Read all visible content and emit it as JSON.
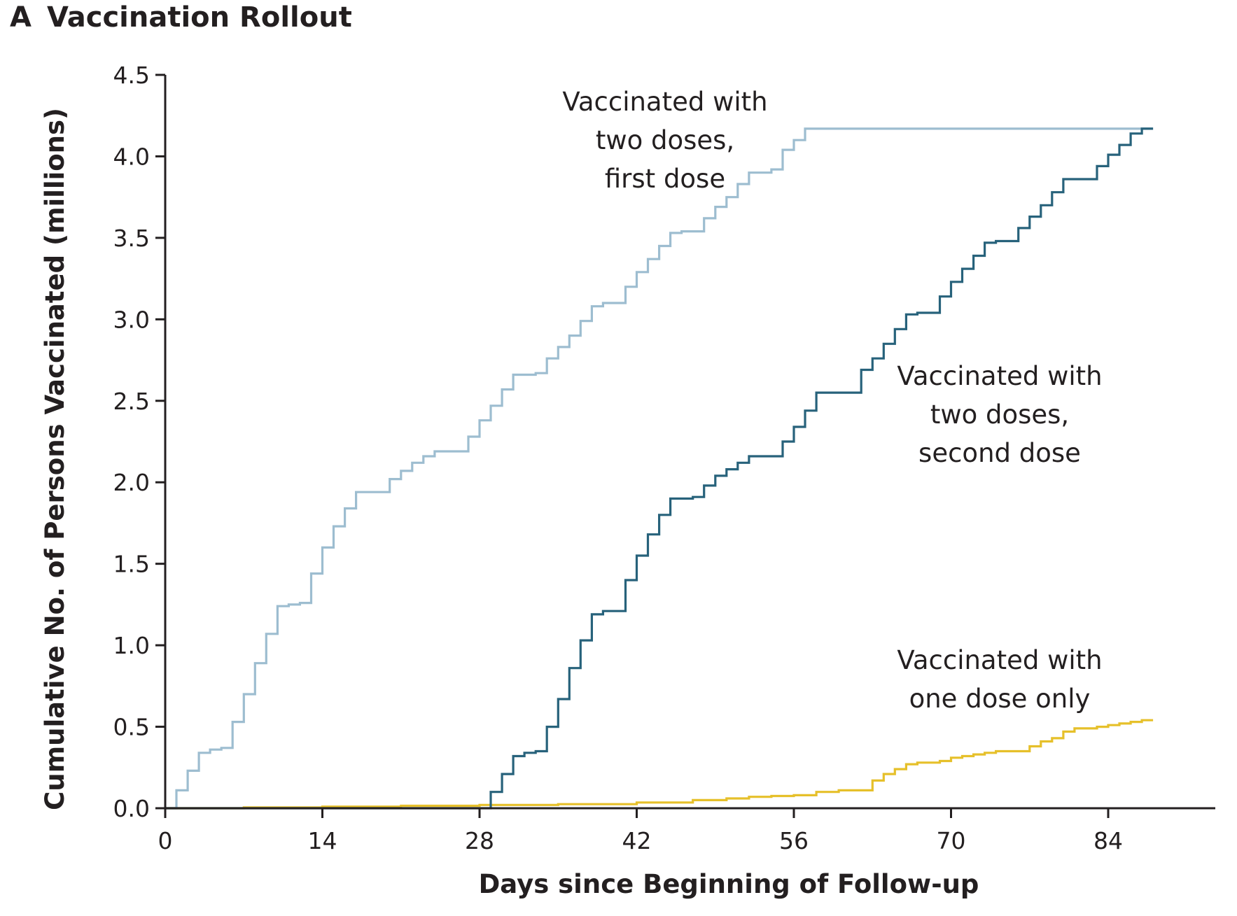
{
  "figure": {
    "panel_letter": "A",
    "panel_title": "Vaccination Rollout"
  },
  "chart_data": {
    "type": "line",
    "title": "Vaccination Rollout",
    "xlabel": "Days since Beginning of Follow-up",
    "ylabel": "Cumulative No. of Persons Vaccinated (millions)",
    "xlim": [
      0,
      93
    ],
    "ylim": [
      0,
      4.5
    ],
    "xticks": [
      0,
      14,
      28,
      42,
      56,
      70,
      84
    ],
    "xtick_labels": [
      "0",
      "14",
      "28",
      "42",
      "56",
      "70",
      "84"
    ],
    "yticks": [
      0,
      0.5,
      1.0,
      1.5,
      2.0,
      2.5,
      3.0,
      3.5,
      4.0,
      4.5
    ],
    "ytick_labels": [
      "0.0",
      "0.5",
      "1.0",
      "1.5",
      "2.0",
      "2.5",
      "3.0",
      "3.5",
      "4.0",
      "4.5"
    ],
    "grid": false,
    "legend": "none (series labeled directly)",
    "series": [
      {
        "key": "first_dose",
        "name": "Vaccinated with two doses, first dose",
        "label_lines": [
          "Vaccinated with",
          "two doses,",
          "first dose"
        ],
        "color": "#9dbdd0",
        "step": true,
        "x": [
          0,
          1,
          2,
          3,
          4,
          5,
          6,
          7,
          8,
          9,
          10,
          11,
          12,
          13,
          14,
          15,
          16,
          17,
          18,
          19,
          20,
          21,
          22,
          23,
          24,
          25,
          26,
          27,
          28,
          29,
          30,
          31,
          32,
          33,
          34,
          35,
          36,
          37,
          38,
          39,
          40,
          41,
          42,
          43,
          44,
          45,
          46,
          47,
          48,
          49,
          50,
          51,
          52,
          53,
          54,
          55,
          56,
          57,
          58,
          59,
          88
        ],
        "values": [
          0,
          0.11,
          0.23,
          0.34,
          0.36,
          0.37,
          0.53,
          0.7,
          0.89,
          1.07,
          1.24,
          1.25,
          1.26,
          1.44,
          1.6,
          1.73,
          1.84,
          1.94,
          1.94,
          1.94,
          2.02,
          2.07,
          2.12,
          2.16,
          2.19,
          2.19,
          2.19,
          2.28,
          2.38,
          2.47,
          2.57,
          2.66,
          2.66,
          2.67,
          2.76,
          2.83,
          2.9,
          2.99,
          3.08,
          3.1,
          3.1,
          3.2,
          3.29,
          3.37,
          3.45,
          3.53,
          3.54,
          3.54,
          3.62,
          3.69,
          3.75,
          3.83,
          3.9,
          3.9,
          3.92,
          4.04,
          4.1,
          4.17,
          4.17,
          4.17,
          4.17
        ]
      },
      {
        "key": "second_dose",
        "name": "Vaccinated with two doses, second dose",
        "label_lines": [
          "Vaccinated with",
          "two doses,",
          "second dose"
        ],
        "color": "#27627b",
        "step": true,
        "x": [
          0,
          29,
          30,
          31,
          32,
          33,
          34,
          35,
          36,
          37,
          38,
          39,
          40,
          41,
          42,
          43,
          44,
          45,
          46,
          47,
          48,
          49,
          50,
          51,
          52,
          53,
          54,
          55,
          56,
          57,
          58,
          59,
          60,
          61,
          62,
          63,
          64,
          65,
          66,
          67,
          68,
          69,
          70,
          71,
          72,
          73,
          74,
          75,
          76,
          77,
          78,
          79,
          80,
          81,
          82,
          83,
          84,
          85,
          86,
          87,
          88
        ],
        "values": [
          0,
          0.1,
          0.21,
          0.32,
          0.34,
          0.35,
          0.5,
          0.67,
          0.86,
          1.03,
          1.19,
          1.21,
          1.21,
          1.4,
          1.55,
          1.68,
          1.8,
          1.9,
          1.9,
          1.91,
          1.98,
          2.04,
          2.08,
          2.12,
          2.16,
          2.16,
          2.16,
          2.25,
          2.34,
          2.44,
          2.55,
          2.55,
          2.55,
          2.55,
          2.69,
          2.76,
          2.85,
          2.94,
          3.03,
          3.04,
          3.04,
          3.14,
          3.23,
          3.31,
          3.39,
          3.47,
          3.48,
          3.48,
          3.56,
          3.63,
          3.7,
          3.78,
          3.86,
          3.86,
          3.86,
          3.94,
          4.01,
          4.07,
          4.14,
          4.17,
          4.17
        ]
      },
      {
        "key": "one_dose",
        "name": "Vaccinated with one dose only",
        "label_lines": [
          "Vaccinated with",
          "one dose only"
        ],
        "color": "#e6c02a",
        "step": true,
        "x": [
          0,
          7,
          14,
          21,
          28,
          35,
          42,
          47,
          50,
          52,
          54,
          56,
          58,
          60,
          62,
          63,
          64,
          65,
          66,
          67,
          68,
          69,
          70,
          71,
          72,
          73,
          74,
          75,
          76,
          77,
          78,
          79,
          80,
          81,
          82,
          83,
          84,
          85,
          86,
          87,
          88
        ],
        "values": [
          0,
          0.005,
          0.01,
          0.015,
          0.02,
          0.025,
          0.035,
          0.05,
          0.06,
          0.07,
          0.075,
          0.08,
          0.1,
          0.11,
          0.11,
          0.17,
          0.21,
          0.24,
          0.27,
          0.28,
          0.28,
          0.29,
          0.31,
          0.32,
          0.33,
          0.34,
          0.35,
          0.35,
          0.35,
          0.38,
          0.41,
          0.43,
          0.47,
          0.49,
          0.49,
          0.5,
          0.51,
          0.52,
          0.53,
          0.54,
          0.54
        ]
      }
    ]
  }
}
